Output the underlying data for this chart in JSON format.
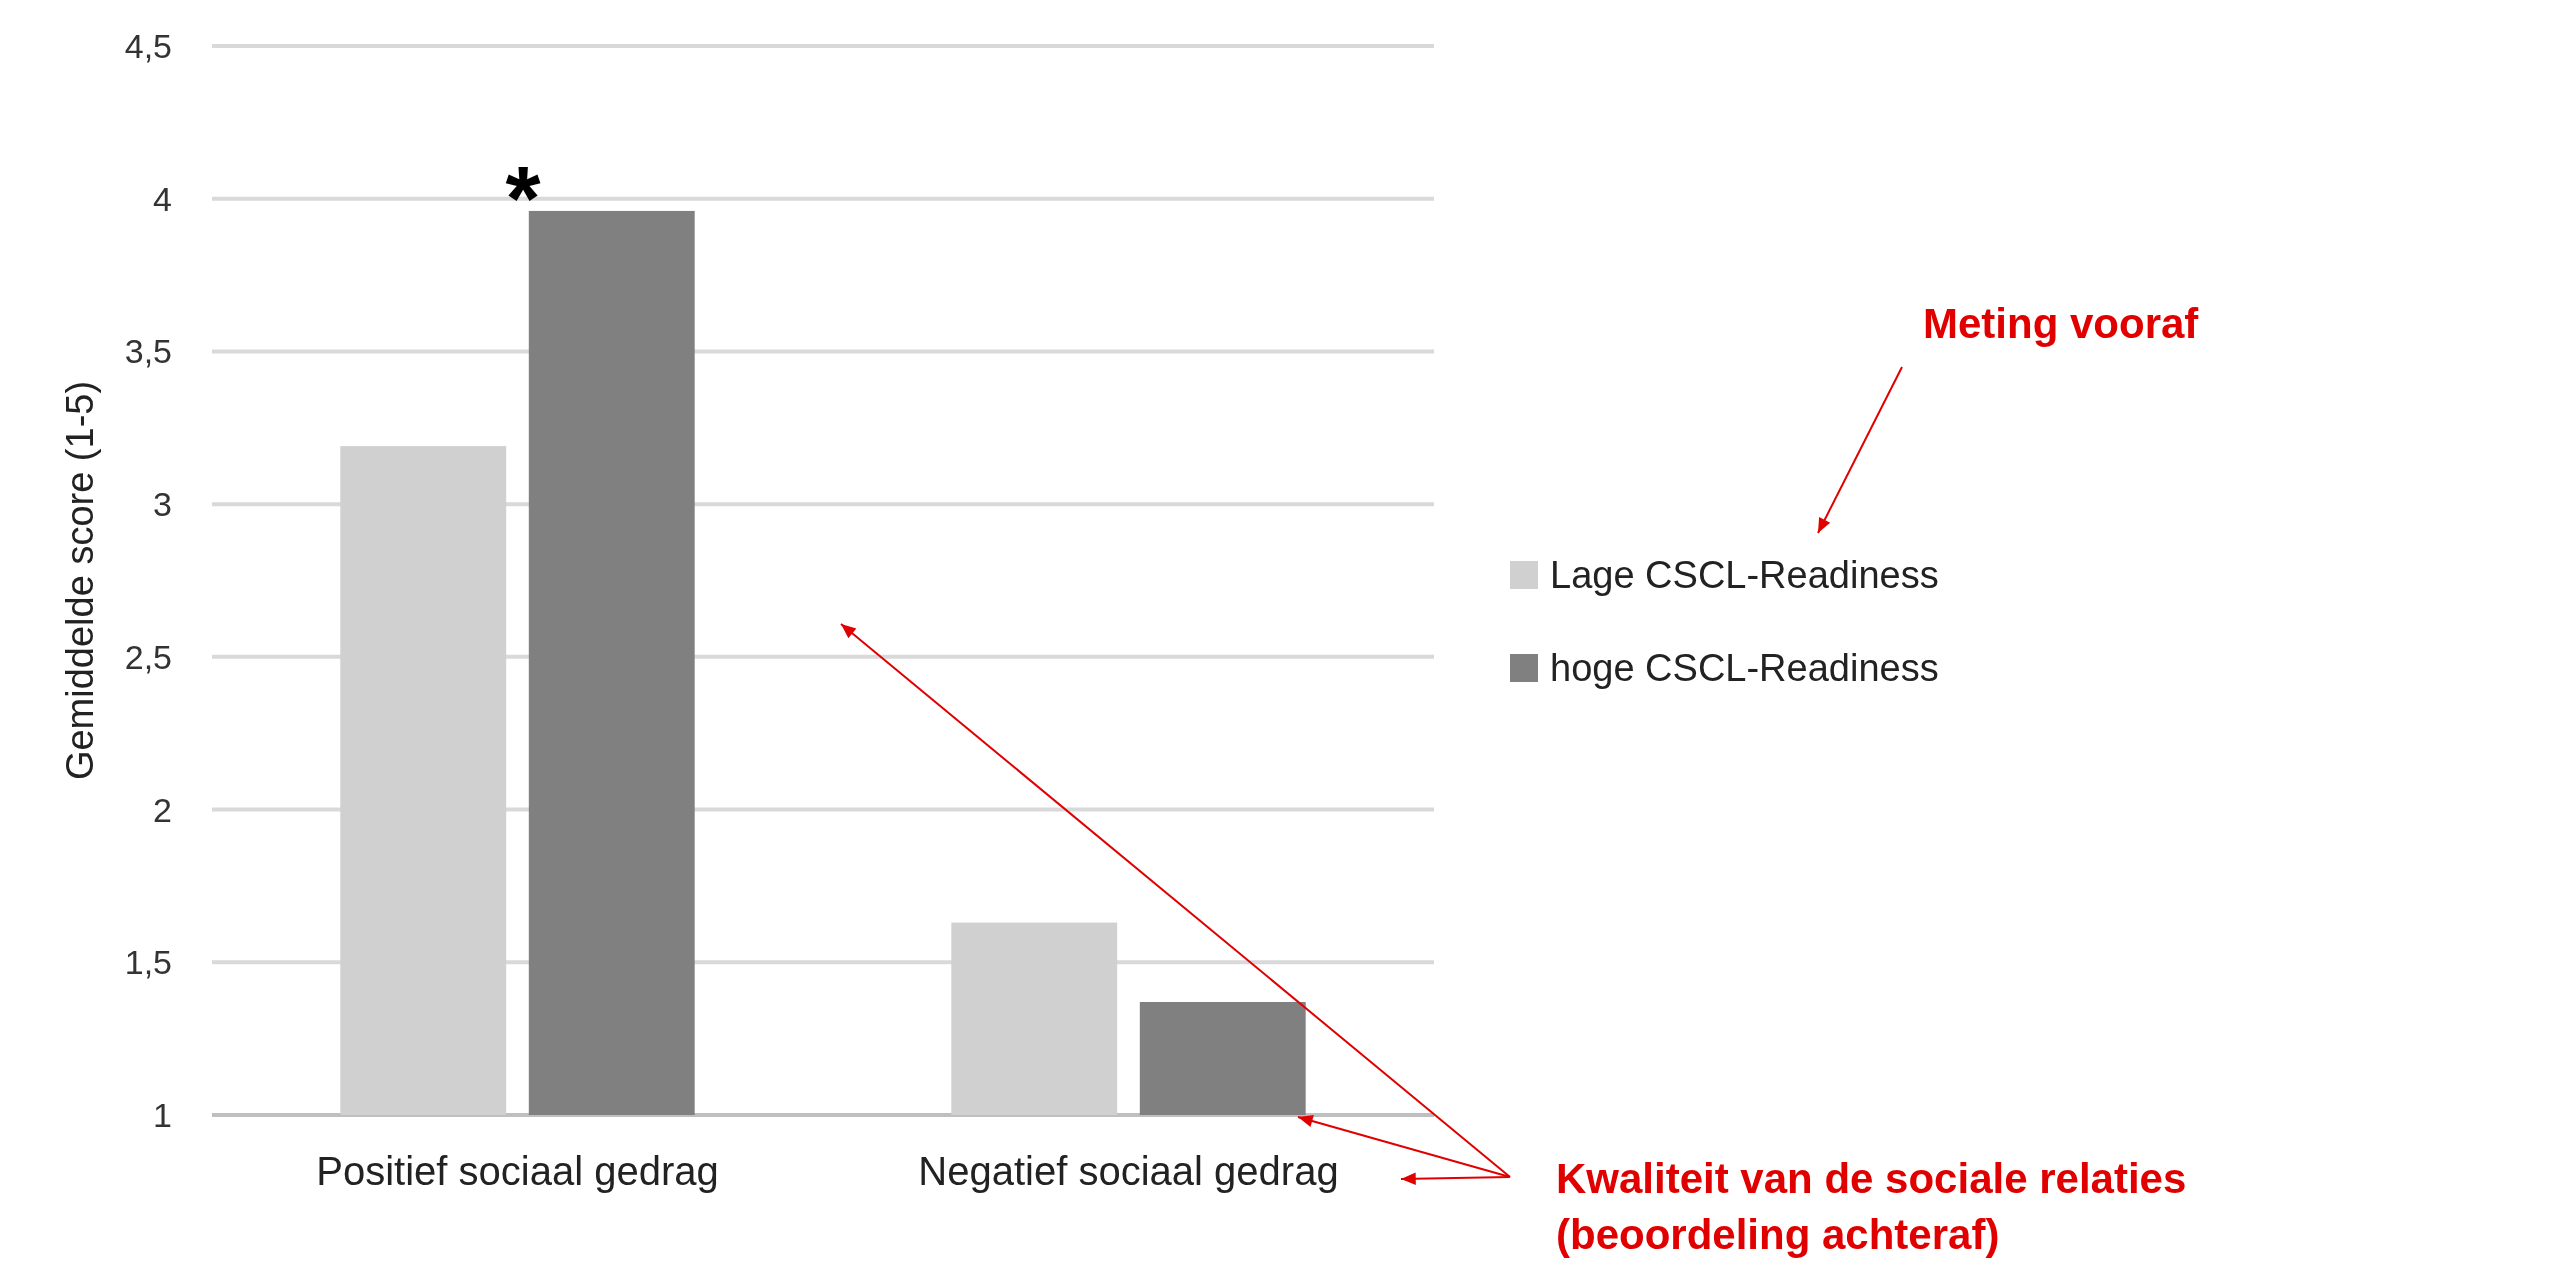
{
  "chart_data": {
    "type": "bar",
    "ylabel": "Gemiddelde score (1-5)",
    "categories": [
      "Positief sociaal gedrag",
      "Negatief sociaal gedrag"
    ],
    "series": [
      {
        "name": "Lage CSCL-Readiness",
        "color": "#d0d0d0",
        "values": [
          3.19,
          1.63
        ]
      },
      {
        "name": "hoge CSCL-Readiness",
        "color": "#808080",
        "values": [
          3.96,
          1.37
        ]
      }
    ],
    "ylim": [
      1,
      4.5
    ],
    "yticks": [
      1,
      {
        "value": 1.5,
        "label": "1,5"
      },
      2,
      {
        "value": 2.5,
        "label": "2,5"
      },
      3,
      {
        "value": 3.5,
        "label": "3,5"
      },
      4,
      {
        "value": 4.5,
        "label": "4,5"
      }
    ],
    "grid": "y",
    "legend": "right",
    "annotations": [
      "*",
      "Meting vooraf",
      "Kwaliteit van de sociale relaties\n(beoordeling achteraf)"
    ]
  }
}
